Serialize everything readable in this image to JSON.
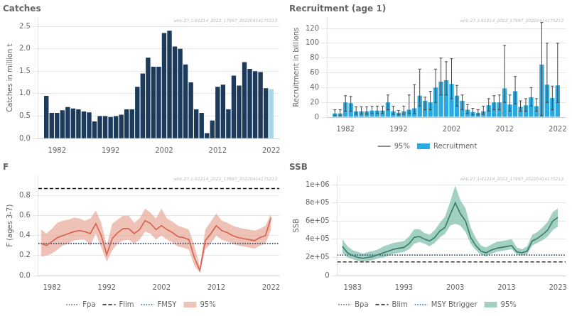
{
  "chart_data": [
    {
      "type": "bar",
      "title": "Catches",
      "y_label": "Catches in million t",
      "x": [
        1980,
        1981,
        1982,
        1983,
        1984,
        1985,
        1986,
        1987,
        1988,
        1989,
        1990,
        1991,
        1992,
        1993,
        1994,
        1995,
        1996,
        1997,
        1998,
        1999,
        2000,
        2001,
        2002,
        2003,
        2004,
        2005,
        2006,
        2007,
        2008,
        2009,
        2010,
        2011,
        2012,
        2013,
        2014,
        2015,
        2016,
        2017,
        2018,
        2019,
        2020,
        2021,
        2022
      ],
      "values": [
        0.95,
        0.57,
        0.57,
        0.63,
        0.7,
        0.67,
        0.65,
        0.6,
        0.58,
        0.38,
        0.5,
        0.5,
        0.48,
        0.5,
        0.53,
        0.65,
        0.65,
        1.15,
        1.45,
        1.8,
        1.6,
        1.6,
        2.35,
        2.4,
        2.05,
        2.0,
        1.65,
        1.25,
        0.65,
        0.57,
        0.12,
        0.4,
        1.15,
        1.2,
        0.65,
        1.4,
        1.18,
        1.7,
        1.55,
        1.5,
        1.48,
        1.12,
        1.1
      ],
      "colors": [
        "#1b3a5c",
        "#1b3a5c",
        "#1b3a5c",
        "#1b3a5c",
        "#1b3a5c",
        "#1b3a5c",
        "#1b3a5c",
        "#1b3a5c",
        "#1b3a5c",
        "#1b3a5c",
        "#1b3a5c",
        "#1b3a5c",
        "#1b3a5c",
        "#1b3a5c",
        "#1b3a5c",
        "#1b3a5c",
        "#1b3a5c",
        "#1b3a5c",
        "#1b3a5c",
        "#1b3a5c",
        "#1b3a5c",
        "#1b3a5c",
        "#1b3a5c",
        "#1b3a5c",
        "#1b3a5c",
        "#1b3a5c",
        "#1b3a5c",
        "#1b3a5c",
        "#1b3a5c",
        "#1b3a5c",
        "#1b3a5c",
        "#1b3a5c",
        "#1b3a5c",
        "#1b3a5c",
        "#1b3a5c",
        "#1b3a5c",
        "#1b3a5c",
        "#1b3a5c",
        "#1b3a5c",
        "#1b3a5c",
        "#1b3a5c",
        "#1b3a5c",
        "#a8d5ea"
      ],
      "xlim": [
        1978.5,
        2023.5
      ],
      "xticks": [
        1982,
        1992,
        2002,
        2012,
        2022
      ],
      "ylim": [
        0,
        2.7
      ],
      "yticks": [
        {
          "value": 0,
          "label": "0.0"
        },
        {
          "value": 0.5,
          "label": "0.5"
        },
        {
          "value": 1.0,
          "label": "1.0"
        },
        {
          "value": 1.5,
          "label": "1.5"
        },
        {
          "value": 2.0,
          "label": "2.0"
        },
        {
          "value": 2.5,
          "label": "2.5"
        }
      ],
      "grid": "y",
      "legend": false,
      "annotation": "whb.27.1-91214_2022_17997_20220414175213"
    },
    {
      "type": "bar",
      "title": "Recruitment (age 1)",
      "y_label": "Recruitment in billions",
      "x": [
        1980,
        1981,
        1982,
        1983,
        1984,
        1985,
        1986,
        1987,
        1988,
        1989,
        1990,
        1991,
        1992,
        1993,
        1994,
        1995,
        1996,
        1997,
        1998,
        1999,
        2000,
        2001,
        2002,
        2003,
        2004,
        2005,
        2006,
        2007,
        2008,
        2009,
        2010,
        2011,
        2012,
        2013,
        2014,
        2015,
        2016,
        2017,
        2018,
        2019,
        2020,
        2021,
        2022
      ],
      "series": [
        {
          "name": "Recruitment",
          "color": "#29aae1",
          "values": [
            5,
            5,
            20,
            19,
            8,
            8,
            8,
            9,
            9,
            9,
            20,
            8,
            6,
            8,
            10,
            12,
            29,
            22,
            20,
            40,
            48,
            50,
            45,
            29,
            22,
            10,
            7,
            6,
            8,
            16,
            20,
            20,
            39,
            17,
            35,
            14,
            16,
            27,
            15,
            71,
            44,
            26,
            43
          ],
          "error_bars": {
            "name": "95%",
            "color": "#444444",
            "low": [
              2,
              2,
              8,
              8,
              4,
              4,
              4,
              5,
              5,
              5,
              10,
              4,
              3,
              4,
              5,
              5,
              15,
              10,
              10,
              20,
              30,
              30,
              25,
              15,
              10,
              5,
              3,
              3,
              4,
              8,
              10,
              10,
              20,
              8,
              18,
              8,
              8,
              15,
              8,
              2,
              20,
              10,
              20
            ],
            "high": [
              10,
              10,
              29,
              28,
              14,
              14,
              14,
              15,
              15,
              15,
              30,
              15,
              9,
              15,
              30,
              44,
              65,
              27,
              35,
              65,
              80,
              75,
              79,
              43,
              30,
              17,
              12,
              10,
              15,
              25,
              29,
              30,
              97,
              30,
              55,
              22,
              25,
              40,
              25,
              128,
              100,
              42,
              100
            ]
          }
        }
      ],
      "xlim": [
        1978.5,
        2023.5
      ],
      "xticks": [
        1982,
        1992,
        2002,
        2012,
        2022
      ],
      "ylim": [
        0,
        135
      ],
      "yticks": [
        0,
        20,
        40,
        60,
        80,
        100,
        120
      ],
      "grid": "y",
      "legend": "bottom",
      "annotation": "whb.27.1-91214_2022_17997_20220414175213"
    },
    {
      "type": "line",
      "title": "F",
      "y_label": "F (ages 3-7)",
      "x": [
        1980,
        1981,
        1982,
        1983,
        1984,
        1985,
        1986,
        1987,
        1988,
        1989,
        1990,
        1991,
        1992,
        1993,
        1994,
        1995,
        1996,
        1997,
        1998,
        1999,
        2000,
        2001,
        2002,
        2003,
        2004,
        2005,
        2006,
        2007,
        2008,
        2009,
        2010,
        2011,
        2012,
        2013,
        2014,
        2015,
        2016,
        2017,
        2018,
        2019,
        2020,
        2021,
        2022
      ],
      "values": [
        0.32,
        0.3,
        0.34,
        0.38,
        0.4,
        0.42,
        0.44,
        0.45,
        0.44,
        0.42,
        0.52,
        0.4,
        0.21,
        0.37,
        0.43,
        0.47,
        0.47,
        0.42,
        0.46,
        0.55,
        0.52,
        0.46,
        0.5,
        0.46,
        0.43,
        0.39,
        0.38,
        0.36,
        0.18,
        0.05,
        0.35,
        0.42,
        0.5,
        0.45,
        0.43,
        0.4,
        0.38,
        0.37,
        0.36,
        0.35,
        0.38,
        0.4,
        0.58
      ],
      "color": "#d9604a",
      "band": {
        "name": "95%",
        "color": "#e8a898",
        "low": [
          0.19,
          0.2,
          0.22,
          0.26,
          0.3,
          0.32,
          0.35,
          0.36,
          0.36,
          0.3,
          0.42,
          0.28,
          0.14,
          0.25,
          0.32,
          0.35,
          0.36,
          0.32,
          0.36,
          0.44,
          0.42,
          0.36,
          0.4,
          0.36,
          0.33,
          0.29,
          0.28,
          0.26,
          0.1,
          0.03,
          0.26,
          0.32,
          0.4,
          0.36,
          0.34,
          0.32,
          0.3,
          0.29,
          0.28,
          0.27,
          0.3,
          0.32,
          0.46
        ],
        "high": [
          0.46,
          0.42,
          0.47,
          0.53,
          0.55,
          0.56,
          0.58,
          0.57,
          0.55,
          0.57,
          0.65,
          0.53,
          0.3,
          0.52,
          0.56,
          0.6,
          0.6,
          0.53,
          0.57,
          0.67,
          0.63,
          0.57,
          0.67,
          0.57,
          0.54,
          0.5,
          0.48,
          0.46,
          0.3,
          0.09,
          0.46,
          0.54,
          0.62,
          0.55,
          0.53,
          0.5,
          0.48,
          0.47,
          0.46,
          0.45,
          0.47,
          0.5,
          0.62
        ]
      },
      "reference_lines": [
        {
          "name": "Fpa",
          "value": 0.32,
          "color": "#555555",
          "line_style": "dotted"
        },
        {
          "name": "Flim",
          "value": 0.871,
          "color": "#111111",
          "line_style": "dashed"
        },
        {
          "name": "FMSY",
          "value": 0.32,
          "color": "#2255bb",
          "line_style": "dotted"
        }
      ],
      "xlim": [
        1979.5,
        2023.5
      ],
      "xticks": [
        1982,
        1992,
        2002,
        2012,
        2022
      ],
      "ylim": [
        0,
        1.0
      ],
      "yticks": [
        {
          "value": 0,
          "label": "0.0"
        },
        {
          "value": 0.2,
          "label": "0.2"
        },
        {
          "value": 0.4,
          "label": "0.4"
        },
        {
          "value": 0.6,
          "label": "0.6"
        },
        {
          "value": 0.8,
          "label": "0.8"
        }
      ],
      "grid": "y",
      "legend": "bottom",
      "annotation": "whb.27.1-91214_2022_17997_20220414175213"
    },
    {
      "type": "line",
      "title": "SSB",
      "y_label": "SSB",
      "x": [
        1981,
        1982,
        1983,
        1984,
        1985,
        1986,
        1987,
        1988,
        1989,
        1990,
        1991,
        1992,
        1993,
        1994,
        1995,
        1996,
        1997,
        1998,
        1999,
        2000,
        2001,
        2002,
        2003,
        2004,
        2005,
        2006,
        2007,
        2008,
        2009,
        2010,
        2011,
        2012,
        2013,
        2014,
        2015,
        2016,
        2017,
        2018,
        2019,
        2020,
        2021,
        2022,
        2023
      ],
      "values": [
        320000.0,
        250000.0,
        220000.0,
        200000.0,
        190000.0,
        200000.0,
        210000.0,
        230000.0,
        250000.0,
        270000.0,
        290000.0,
        300000.0,
        310000.0,
        350000.0,
        420000.0,
        430000.0,
        400000.0,
        380000.0,
        420000.0,
        490000.0,
        530000.0,
        670000.0,
        800000.0,
        680000.0,
        600000.0,
        420000.0,
        330000.0,
        270000.0,
        250000.0,
        280000.0,
        300000.0,
        310000.0,
        320000.0,
        330000.0,
        260000.0,
        250000.0,
        270000.0,
        380000.0,
        410000.0,
        450000.0,
        500000.0,
        600000.0,
        640000.0
      ],
      "color": "#3a7a68",
      "band": {
        "name": "95%",
        "color": "#7abcaa",
        "low": [
          250000.0,
          200000.0,
          180000.0,
          160000.0,
          150000.0,
          160000.0,
          170000.0,
          190000.0,
          200000.0,
          220000.0,
          240000.0,
          250000.0,
          260000.0,
          290000.0,
          350000.0,
          370000.0,
          350000.0,
          320000.0,
          360000.0,
          420000.0,
          460000.0,
          550000.0,
          570000.0,
          550000.0,
          480000.0,
          350000.0,
          280000.0,
          230000.0,
          210000.0,
          240000.0,
          260000.0,
          270000.0,
          280000.0,
          290000.0,
          230000.0,
          220000.0,
          230000.0,
          330000.0,
          360000.0,
          390000.0,
          430000.0,
          500000.0,
          540000.0
        ],
        "high": [
          400000.0,
          320000.0,
          280000.0,
          260000.0,
          240000.0,
          260000.0,
          270000.0,
          290000.0,
          320000.0,
          340000.0,
          360000.0,
          370000.0,
          380000.0,
          430000.0,
          510000.0,
          510000.0,
          470000.0,
          450000.0,
          500000.0,
          580000.0,
          650000.0,
          810000.0,
          990000.0,
          830000.0,
          740000.0,
          530000.0,
          410000.0,
          330000.0,
          310000.0,
          340000.0,
          370000.0,
          380000.0,
          390000.0,
          400000.0,
          310000.0,
          290000.0,
          320000.0,
          450000.0,
          480000.0,
          530000.0,
          590000.0,
          700000.0,
          740000.0
        ]
      },
      "reference_lines": [
        {
          "name": "Bpa",
          "value": 225000.0,
          "color": "#555555",
          "line_style": "dotted"
        },
        {
          "name": "Blim",
          "value": 150000.0,
          "color": "#111111",
          "line_style": "dashed"
        },
        {
          "name": "MSY Btrigger",
          "value": 225000.0,
          "color": "#2255bb",
          "line_style": "dotted"
        }
      ],
      "xlim": [
        1980.0,
        2024.5
      ],
      "xticks": [
        1983,
        1993,
        2003,
        2013,
        2023
      ],
      "ylim": [
        0,
        1100000
      ],
      "yticks": [
        0,
        {
          "value": 200000,
          "label": "2e+05"
        },
        {
          "value": 400000,
          "label": "4e+05"
        },
        {
          "value": 600000,
          "label": "6e+05"
        },
        {
          "value": 800000,
          "label": "8e+05"
        },
        {
          "value": 1000000,
          "label": "1e+06"
        }
      ],
      "grid": "y",
      "legend": "bottom",
      "annotation": "whb.27.1-91214_2022_17997_20220414175213"
    }
  ]
}
